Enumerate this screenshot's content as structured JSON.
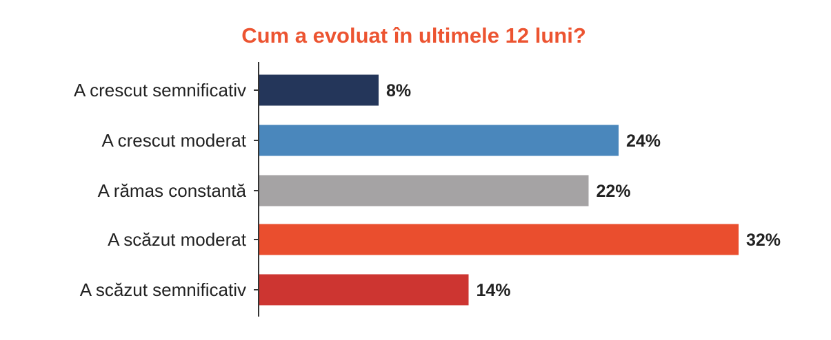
{
  "chart_data": {
    "type": "bar",
    "orientation": "horizontal",
    "title": "Cum a evoluat în ultimele 12 luni?",
    "title_color": "#ec5431",
    "categories": [
      "A crescut semnificativ",
      "A crescut moderat",
      "A rămas constantă",
      "A scăzut moderat",
      "A scăzut semnificativ"
    ],
    "values": [
      8,
      24,
      22,
      32,
      14
    ],
    "value_labels": [
      "8%",
      "24%",
      "22%",
      "32%",
      "14%"
    ],
    "unit": "%",
    "bar_colors": [
      "#24365a",
      "#4a87bc",
      "#a5a3a4",
      "#ea4e2e",
      "#cd3531"
    ],
    "xlim": [
      0,
      32
    ],
    "axis_color": "#333333",
    "grid": false,
    "legend": "none"
  }
}
